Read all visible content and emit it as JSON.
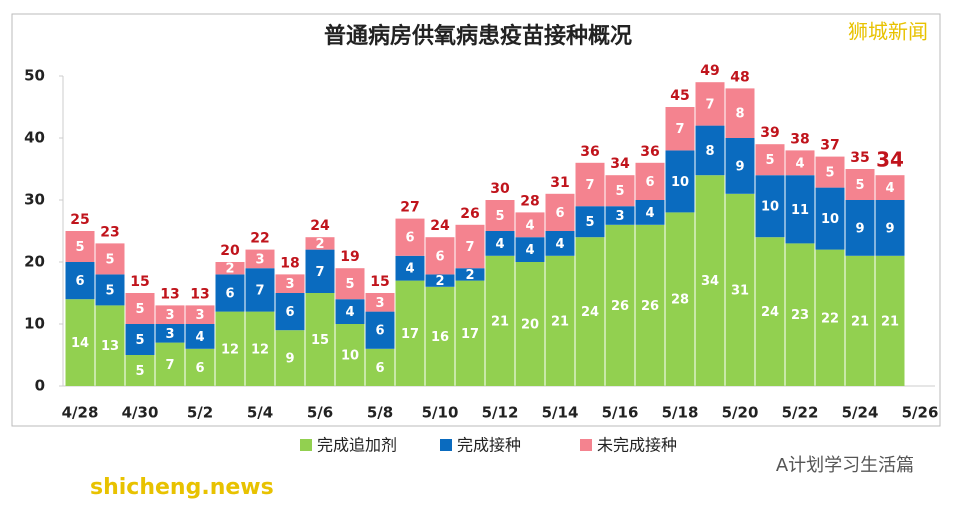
{
  "chart_data": {
    "type": "stacked_bar",
    "title": "普通病房供氧病患疫苗接种概况",
    "watermark": "狮城新闻",
    "source": "shicheng.news",
    "wechat": "A计划学习生活篇",
    "categories": [
      "4/28",
      null,
      "4/30",
      null,
      "5/2",
      null,
      "5/4",
      null,
      "5/6",
      null,
      "5/8",
      null,
      "5/10",
      null,
      "5/12",
      null,
      "5/14",
      null,
      "5/16",
      null,
      "5/18",
      null,
      "5/20",
      null,
      "5/22",
      null,
      "5/24",
      null,
      "5/26"
    ],
    "series": [
      {
        "name": "完成追加剂",
        "color": "#92d050",
        "values": [
          14,
          13,
          5,
          7,
          6,
          12,
          12,
          9,
          15,
          10,
          6,
          17,
          16,
          17,
          21,
          20,
          21,
          24,
          26,
          26,
          28,
          34,
          31,
          24,
          23,
          22,
          21,
          21,
          null
        ]
      },
      {
        "name": "完成接种",
        "color": "#0a6bbf",
        "values": [
          6,
          5,
          5,
          3,
          4,
          6,
          7,
          6,
          7,
          4,
          6,
          4,
          2,
          2,
          4,
          4,
          4,
          5,
          3,
          4,
          10,
          8,
          9,
          10,
          11,
          10,
          9,
          9,
          null
        ]
      },
      {
        "name": "未完成接种",
        "color": "#f4838f",
        "values": [
          5,
          5,
          5,
          3,
          3,
          2,
          3,
          3,
          2,
          5,
          3,
          6,
          6,
          7,
          5,
          4,
          6,
          7,
          5,
          6,
          7,
          7,
          8,
          5,
          4,
          5,
          5,
          4,
          null
        ]
      }
    ],
    "totals": [
      25,
      23,
      15,
      13,
      13,
      20,
      22,
      18,
      24,
      19,
      15,
      27,
      24,
      26,
      30,
      28,
      31,
      36,
      34,
      36,
      45,
      49,
      48,
      39,
      38,
      37,
      35,
      34,
      null
    ],
    "ylim": [
      0,
      50
    ],
    "yticks": [
      0,
      10,
      20,
      30,
      40,
      50
    ],
    "grid": false
  }
}
